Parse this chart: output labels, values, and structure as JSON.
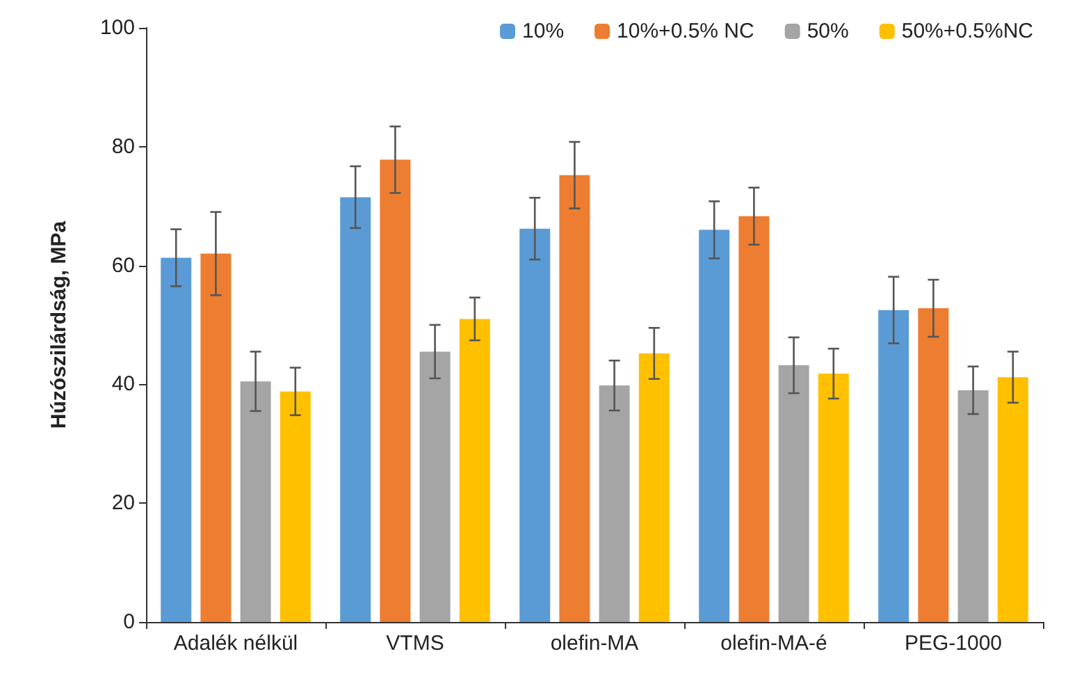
{
  "chart_data": {
    "type": "bar",
    "ylabel": "Húzószilárdság, MPa",
    "categories": [
      "Adalék nélkül",
      "VTMS",
      "olefin-MA",
      "olefin-MA-é",
      "PEG-1000"
    ],
    "series": [
      {
        "name": "10%",
        "color": "#5b9bd5",
        "values": [
          61.3,
          71.5,
          66.2,
          66,
          52.5
        ],
        "errors": [
          4.8,
          5.2,
          5.2,
          4.8,
          5.6
        ]
      },
      {
        "name": "10%+0.5% NC",
        "color": "#ed7d31",
        "values": [
          62,
          77.8,
          75.2,
          68.3,
          52.8
        ],
        "errors": [
          7,
          5.6,
          5.6,
          4.8,
          4.8
        ]
      },
      {
        "name": "50%",
        "color": "#a5a5a5",
        "values": [
          40.5,
          45.5,
          39.8,
          43.2,
          39
        ],
        "errors": [
          5,
          4.5,
          4.2,
          4.7,
          4
        ]
      },
      {
        "name": "50%+0.5%NC",
        "color": "#ffc000",
        "values": [
          38.8,
          51,
          45.2,
          41.8,
          41.2
        ],
        "errors": [
          4,
          3.6,
          4.3,
          4.2,
          4.3
        ]
      }
    ],
    "ylim": [
      0,
      100
    ],
    "yticks": [
      0,
      20,
      40,
      60,
      80,
      100
    ],
    "grid": false,
    "legend": "top right"
  }
}
